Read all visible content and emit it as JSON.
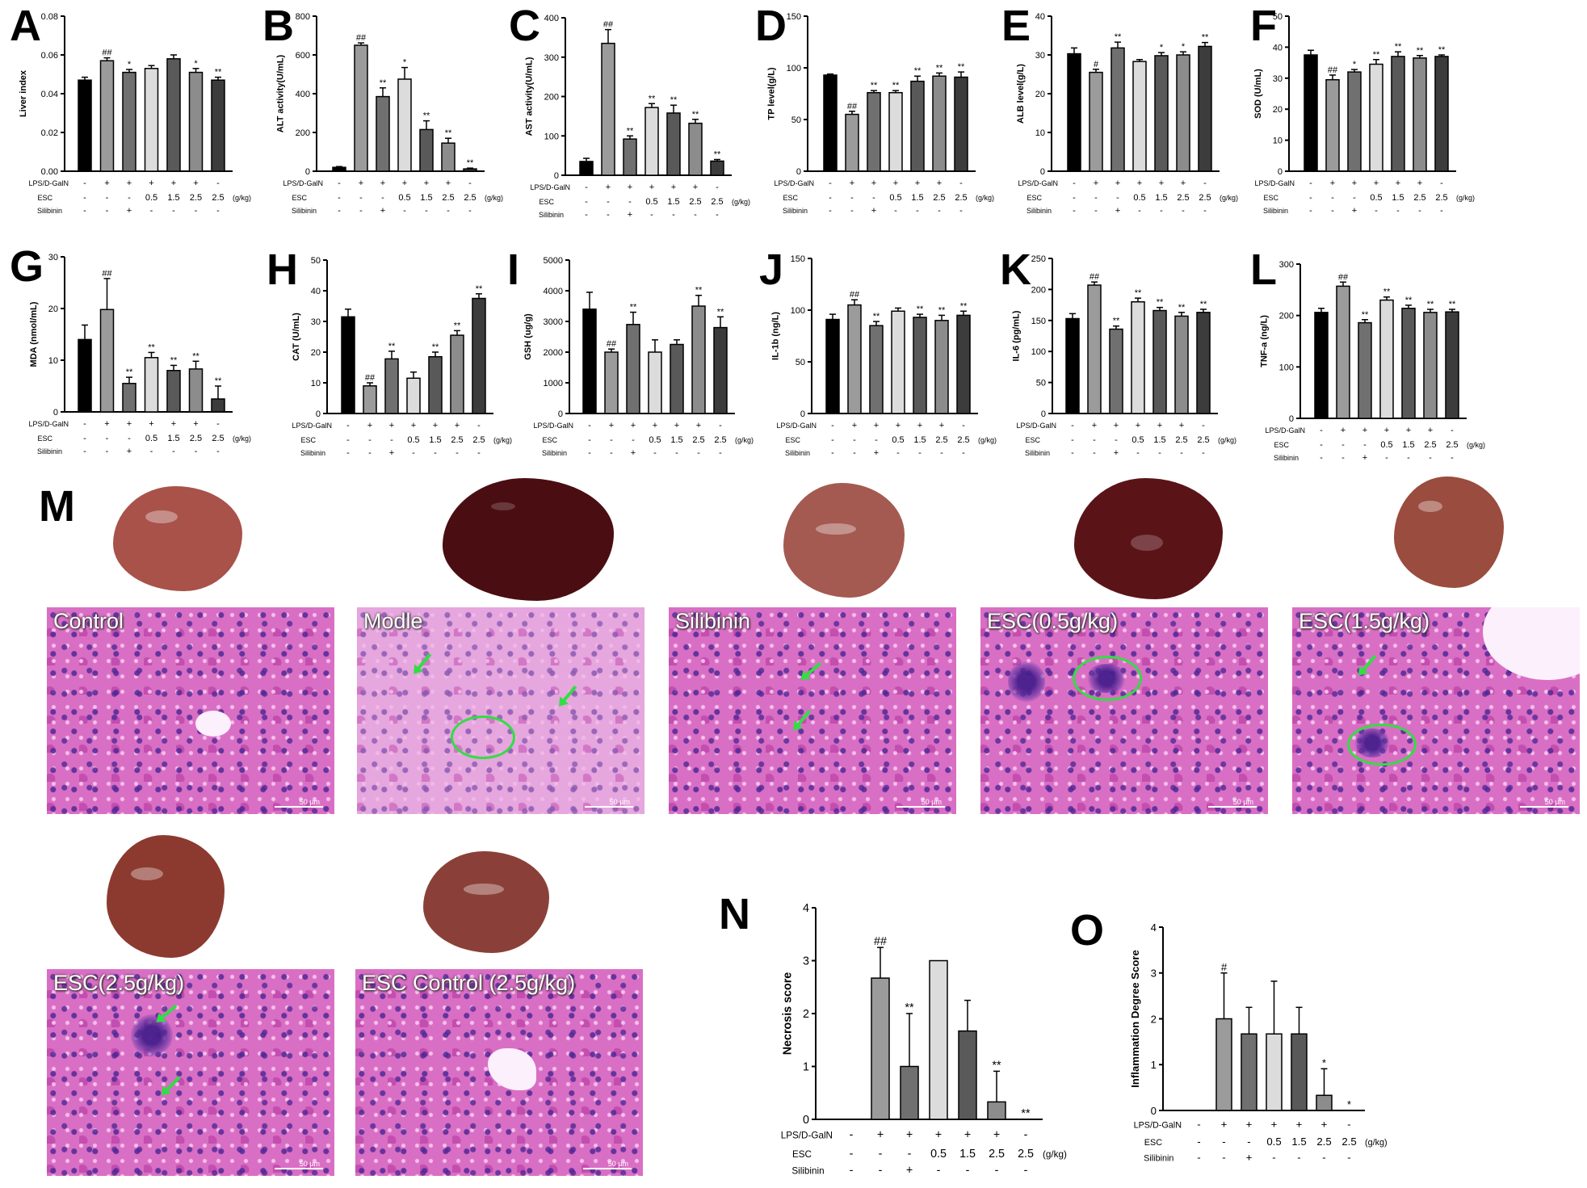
{
  "treatment_labels": {
    "row1": "LPS/D-GalN",
    "row2": "ESC",
    "row3": "Silibinin",
    "unit": "(g/kg)"
  },
  "treatment_values": {
    "lps": [
      "-",
      "+",
      "+",
      "+",
      "+",
      "+",
      "-"
    ],
    "esc": [
      "-",
      "-",
      "-",
      "0.5",
      "1.5",
      "2.5",
      "2.5"
    ],
    "sil": [
      "-",
      "-",
      "+",
      "-",
      "-",
      "-",
      "-"
    ]
  },
  "bar_colors": [
    "#000000",
    "#9b9b9b",
    "#707070",
    "#dcdcdc",
    "#595959",
    "#8c8c8c",
    "#3c3c3c"
  ],
  "chart_data": [
    {
      "letter": "A",
      "type": "bar",
      "ylabel": "Liver index",
      "ylim": [
        0,
        0.08
      ],
      "ticks": [
        "0.00",
        "0.02",
        "0.04",
        "0.06",
        "0.08"
      ],
      "values": [
        0.047,
        0.057,
        0.051,
        0.053,
        0.058,
        0.051,
        0.047
      ],
      "errors": [
        0.0015,
        0.0015,
        0.0015,
        0.0015,
        0.002,
        0.002,
        0.0015
      ],
      "labels": [
        "",
        "##",
        "*",
        "",
        "",
        "*",
        "**"
      ]
    },
    {
      "letter": "B",
      "type": "bar",
      "ylabel": "ALT activity(U/mL)",
      "ylim": [
        0,
        800
      ],
      "ticks": [
        "0",
        "200",
        "400",
        "600",
        "800"
      ],
      "values": [
        20,
        650,
        385,
        475,
        215,
        145,
        12
      ],
      "errors": [
        4,
        12,
        45,
        60,
        45,
        25,
        4
      ],
      "labels": [
        "",
        "##",
        "**",
        "*",
        "**",
        "**",
        "**"
      ]
    },
    {
      "letter": "C",
      "type": "bar",
      "ylabel": "AST activity(U/mL)",
      "ylim": [
        0,
        400
      ],
      "ticks": [
        "0",
        "100",
        "200",
        "300",
        "400"
      ],
      "values": [
        35,
        335,
        92,
        172,
        158,
        132,
        36
      ],
      "errors": [
        8,
        35,
        8,
        10,
        20,
        10,
        4
      ],
      "labels": [
        "",
        "##",
        "**",
        "**",
        "**",
        "**",
        "**"
      ]
    },
    {
      "letter": "D",
      "type": "bar",
      "ylabel": "TP level(g/L)",
      "ylim": [
        0,
        150
      ],
      "ticks": [
        "0",
        "50",
        "100",
        "150"
      ],
      "values": [
        93,
        55,
        76,
        76,
        87,
        92,
        91
      ],
      "errors": [
        1,
        3,
        2,
        2,
        5,
        3,
        5
      ],
      "labels": [
        "",
        "##",
        "**",
        "**",
        "**",
        "**",
        "**"
      ]
    },
    {
      "letter": "E",
      "type": "bar",
      "ylabel": "ALB level(g/L)",
      "ylim": [
        0,
        40
      ],
      "ticks": [
        "0",
        "10",
        "20",
        "30",
        "40"
      ],
      "values": [
        30.3,
        25.5,
        31.8,
        28.3,
        29.8,
        30.0,
        32.2
      ],
      "errors": [
        1.5,
        0.8,
        1.5,
        0.5,
        0.8,
        0.8,
        1.0
      ],
      "labels": [
        "",
        "#",
        "**",
        "",
        "*",
        "*",
        "**"
      ]
    },
    {
      "letter": "F",
      "type": "bar",
      "ylabel": "SOD (U/mL)",
      "ylim": [
        0,
        50
      ],
      "ticks": [
        "0",
        "10",
        "20",
        "30",
        "40",
        "50"
      ],
      "values": [
        37.5,
        29.5,
        32,
        34.5,
        37,
        36.5,
        37
      ],
      "errors": [
        1.5,
        1.5,
        0.8,
        1.5,
        1.5,
        0.8,
        0.5
      ],
      "labels": [
        "",
        "##",
        "*",
        "**",
        "**",
        "**",
        "**"
      ]
    },
    {
      "letter": "G",
      "type": "bar",
      "ylabel": "MDA (nmol/mL)",
      "ylim": [
        0,
        30
      ],
      "ticks": [
        "0",
        "10",
        "20",
        "30"
      ],
      "values": [
        14,
        19.8,
        5.5,
        10.5,
        8,
        8.3,
        2.5
      ],
      "errors": [
        2.8,
        6,
        1.2,
        1,
        1,
        1.5,
        2.5
      ],
      "labels": [
        "",
        "##",
        "**",
        "**",
        "**",
        "**",
        "**"
      ]
    },
    {
      "letter": "H",
      "type": "bar",
      "ylabel": "CAT (U/mL)",
      "ylim": [
        0,
        50
      ],
      "ticks": [
        "0",
        "10",
        "20",
        "30",
        "40",
        "50"
      ],
      "values": [
        31.5,
        9,
        17.8,
        11.5,
        18.5,
        25.5,
        37.5
      ],
      "errors": [
        2.5,
        1,
        2.5,
        2,
        1.5,
        1.5,
        1.5
      ],
      "labels": [
        "",
        "##",
        "**",
        "",
        "**",
        "**",
        "**"
      ]
    },
    {
      "letter": "I",
      "type": "bar",
      "ylabel": "GSH (ug/g)",
      "ylim": [
        0,
        5000
      ],
      "ticks": [
        "0",
        "1000",
        "2000",
        "3000",
        "4000",
        "5000"
      ],
      "values": [
        3400,
        2000,
        2900,
        2000,
        2250,
        3500,
        2800
      ],
      "errors": [
        550,
        100,
        400,
        400,
        150,
        350,
        350
      ],
      "labels": [
        "",
        "##",
        "**",
        "",
        "",
        "**",
        "**"
      ]
    },
    {
      "letter": "J",
      "type": "bar",
      "ylabel": "IL-1b (ng/L)",
      "ylim": [
        0,
        150
      ],
      "ticks": [
        "0",
        "50",
        "100",
        "150"
      ],
      "values": [
        91,
        105,
        85,
        99,
        93,
        90,
        95
      ],
      "errors": [
        5,
        5,
        4,
        3,
        3,
        5,
        4
      ],
      "labels": [
        "",
        "##",
        "**",
        "",
        "**",
        "**",
        "**"
      ]
    },
    {
      "letter": "K",
      "type": "bar",
      "ylabel": "IL-6 (pg/mL)",
      "ylim": [
        0,
        250
      ],
      "ticks": [
        "0",
        "50",
        "100",
        "150",
        "200",
        "250"
      ],
      "values": [
        153,
        207,
        136,
        180,
        166,
        157,
        163
      ],
      "errors": [
        8,
        5,
        5,
        6,
        5,
        6,
        5
      ],
      "labels": [
        "",
        "##",
        "**",
        "**",
        "**",
        "**",
        "**"
      ]
    },
    {
      "letter": "L",
      "type": "bar",
      "ylabel": "TNF-a (ng/L)",
      "ylim": [
        0,
        300
      ],
      "ticks": [
        "0",
        "100",
        "200",
        "300"
      ],
      "values": [
        206,
        257,
        186,
        230,
        214,
        206,
        207
      ],
      "errors": [
        8,
        8,
        6,
        6,
        6,
        6,
        5
      ],
      "labels": [
        "",
        "##",
        "**",
        "**",
        "**",
        "**",
        "**"
      ]
    },
    {
      "letter": "N",
      "type": "bar",
      "ylabel": "Necrosis score",
      "ylim": [
        0,
        4
      ],
      "ticks": [
        "0",
        "1",
        "2",
        "3",
        "4"
      ],
      "values": [
        0,
        2.67,
        1.0,
        3.0,
        1.67,
        0.33,
        0
      ],
      "errors": [
        0,
        0.58,
        1.0,
        0,
        0.58,
        0.58,
        0
      ],
      "labels": [
        "",
        "##",
        "**",
        "",
        "",
        "**",
        "**"
      ]
    },
    {
      "letter": "O",
      "type": "bar",
      "ylabel": "Inflammation Degree Score",
      "ylim": [
        0,
        4
      ],
      "ticks": [
        "0",
        "1",
        "2",
        "3",
        "4"
      ],
      "values": [
        0,
        2.0,
        1.67,
        1.67,
        1.67,
        0.33,
        0
      ],
      "errors": [
        0,
        1.0,
        0.58,
        1.15,
        0.58,
        0.58,
        0
      ],
      "labels": [
        "",
        "#",
        "",
        "",
        "",
        "*",
        "*"
      ]
    }
  ],
  "histology": {
    "letter": "M",
    "labels": [
      "Control",
      "Modle",
      "Silibinin",
      "ESC(0.5g/kg)",
      "ESC(1.5g/kg)",
      "ESC(2.5g/kg)",
      "ESC Control (2.5g/kg)"
    ],
    "scale": "50 μm",
    "liver_colors": [
      "#a8524a",
      "#4a0e12",
      "#a45a50",
      "#5a1418",
      "#9a4c3e",
      "#8c3a30",
      "#8a4038"
    ]
  }
}
